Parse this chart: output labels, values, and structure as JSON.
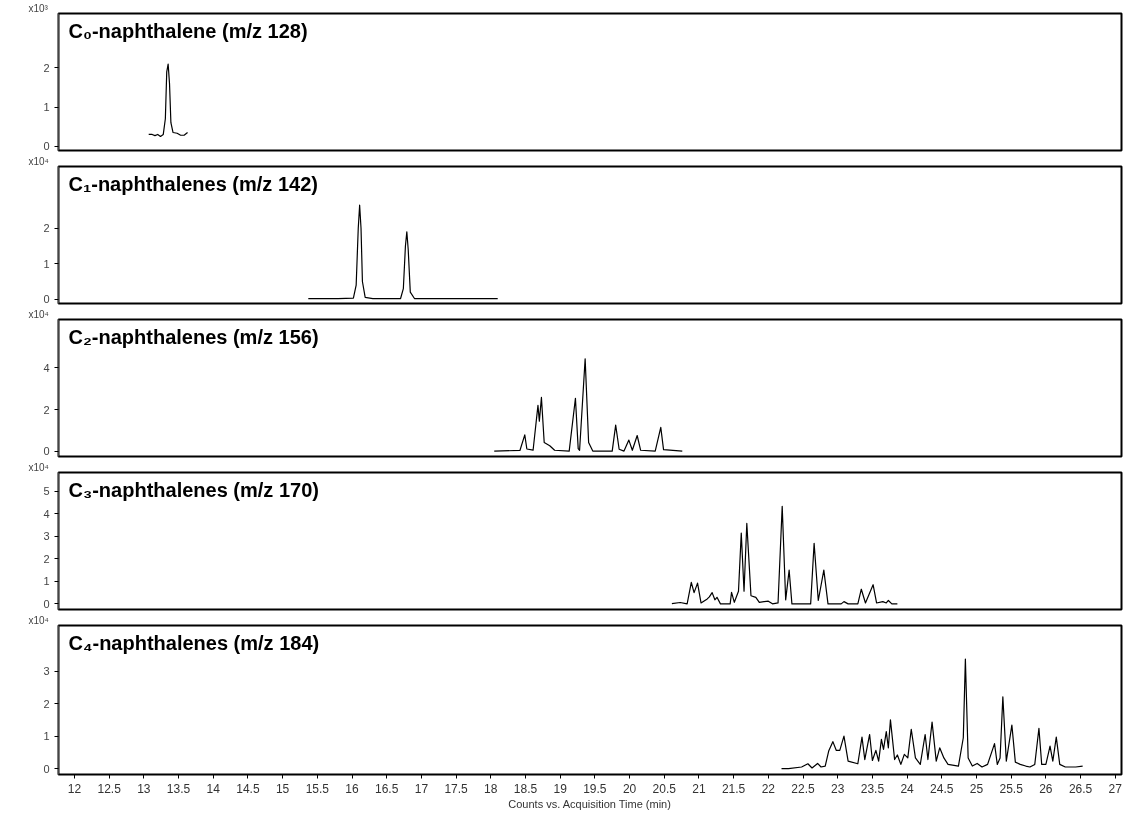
{
  "chart_data": [
    {
      "type": "line",
      "title": "C₀-naphthalene (m/z 128)",
      "ylabel": "x10³",
      "color": "#000000",
      "tick_labels": "y",
      "xlim": [
        11.77,
        27.09
      ],
      "ylim": [
        -0.11,
        3.39
      ],
      "yticks": [
        0,
        1,
        2
      ],
      "x": [
        13.07,
        13.12,
        13.16,
        13.2,
        13.24,
        13.28,
        13.31,
        13.33,
        13.35,
        13.37,
        13.39,
        13.42,
        13.48,
        13.53,
        13.58,
        13.63
      ],
      "values": [
        0.3,
        0.3,
        0.27,
        0.3,
        0.25,
        0.3,
        0.7,
        1.9,
        2.1,
        1.6,
        0.6,
        0.35,
        0.33,
        0.28,
        0.28,
        0.35
      ]
    },
    {
      "type": "line",
      "title": "C₁-naphthalenes (m/z 142)",
      "ylabel": "x10⁴",
      "color": "#000000",
      "tick_labels": "y",
      "xlim": [
        11.77,
        27.09
      ],
      "ylim": [
        -0.12,
        3.74
      ],
      "yticks": [
        0,
        1,
        2
      ],
      "x": [
        15.37,
        15.8,
        16.02,
        16.06,
        16.09,
        16.11,
        16.13,
        16.15,
        16.19,
        16.3,
        16.7,
        16.74,
        16.77,
        16.79,
        16.81,
        16.84,
        16.9,
        18.1
      ],
      "values": [
        0.02,
        0.02,
        0.03,
        0.4,
        2.0,
        2.65,
        2.0,
        0.5,
        0.05,
        0.02,
        0.02,
        0.3,
        1.5,
        1.9,
        1.4,
        0.2,
        0.02,
        0.02
      ]
    },
    {
      "type": "line",
      "title": "C₂-naphthalenes (m/z 156)",
      "ylabel": "x10⁴",
      "color": "#000000",
      "tick_labels": "y",
      "xlim": [
        11.77,
        27.09
      ],
      "ylim": [
        -0.26,
        6.33
      ],
      "yticks": [
        0,
        2,
        4
      ],
      "x": [
        18.05,
        18.42,
        18.49,
        18.52,
        18.61,
        18.68,
        18.7,
        18.73,
        18.77,
        18.85,
        18.92,
        19.13,
        19.22,
        19.26,
        19.28,
        19.36,
        19.41,
        19.47,
        19.75,
        19.8,
        19.85,
        19.92,
        19.99,
        20.04,
        20.11,
        20.16,
        20.37,
        20.45,
        20.49,
        20.76
      ],
      "values": [
        0,
        0.03,
        0.78,
        0.1,
        0.05,
        2.2,
        1.44,
        2.58,
        0.41,
        0.26,
        0.04,
        0,
        2.54,
        0.12,
        0.04,
        4.44,
        0.41,
        0,
        0,
        1.25,
        0.09,
        0,
        0.53,
        0.04,
        0.75,
        0.04,
        0,
        1.14,
        0.07,
        0
      ]
    },
    {
      "type": "line",
      "title": "C₃-naphthalenes (m/z 170)",
      "ylabel": "x10⁴",
      "color": "#000000",
      "tick_labels": "y",
      "xlim": [
        11.77,
        27.09
      ],
      "ylim": [
        -0.25,
        5.83
      ],
      "yticks": [
        0,
        1,
        2,
        3,
        4,
        5
      ],
      "x": [
        20.61,
        20.73,
        20.83,
        20.89,
        20.93,
        20.98,
        21.03,
        21.12,
        21.15,
        21.19,
        21.23,
        21.26,
        21.31,
        21.45,
        21.47,
        21.51,
        21.57,
        21.61,
        21.65,
        21.69,
        21.75,
        21.82,
        21.87,
        22.0,
        22.06,
        22.14,
        22.2,
        22.25,
        22.3,
        22.34,
        22.61,
        22.66,
        22.72,
        22.8,
        22.86,
        23.05,
        23.09,
        23.15,
        23.29,
        23.34,
        23.4,
        23.51,
        23.56,
        23.65,
        23.7,
        23.73,
        23.78,
        23.86
      ],
      "values": [
        0.01,
        0.06,
        0,
        0.95,
        0.5,
        0.92,
        0.04,
        0.22,
        0.31,
        0.5,
        0.18,
        0.29,
        0,
        0,
        0.51,
        0.07,
        0.56,
        3.14,
        0.56,
        3.57,
        0.36,
        0.29,
        0.07,
        0.12,
        0,
        0.04,
        4.33,
        0.18,
        1.5,
        0,
        0,
        2.69,
        0.15,
        1.5,
        0,
        0,
        0.1,
        0,
        0,
        0.65,
        0.04,
        0.85,
        0.04,
        0.1,
        0.04,
        0.15,
        0,
        0
      ]
    },
    {
      "type": "line",
      "title": "C₄-naphthalenes (m/z 184)",
      "ylabel": "x10⁴",
      "xlabel": "Counts vs. Acquisition Time (min)",
      "color": "#000000",
      "xlim": [
        11.77,
        27.09
      ],
      "ylim": [
        -0.18,
        4.4
      ],
      "yticks": [
        0,
        1,
        2,
        3
      ],
      "xticks": [
        12,
        12.5,
        13,
        13.5,
        14,
        14.5,
        15,
        15.5,
        16,
        16.5,
        17,
        17.5,
        18,
        18.5,
        19,
        19.5,
        20,
        20.5,
        21,
        21.5,
        22,
        22.5,
        23,
        23.5,
        24,
        24.5,
        25,
        25.5,
        26,
        26.5,
        27
      ],
      "x": [
        22.19,
        22.29,
        22.48,
        22.57,
        22.63,
        22.71,
        22.76,
        22.82,
        22.87,
        22.93,
        22.98,
        23.03,
        23.09,
        23.15,
        23.29,
        23.35,
        23.39,
        23.46,
        23.5,
        23.55,
        23.59,
        23.63,
        23.66,
        23.7,
        23.73,
        23.76,
        23.82,
        23.86,
        23.91,
        23.96,
        24.01,
        24.06,
        24.12,
        24.19,
        24.26,
        24.3,
        24.36,
        24.42,
        24.47,
        24.53,
        24.59,
        24.74,
        24.81,
        24.84,
        24.88,
        24.94,
        25.01,
        25.08,
        25.16,
        25.26,
        25.3,
        25.34,
        25.38,
        25.43,
        25.51,
        25.56,
        25.63,
        25.71,
        25.77,
        25.84,
        25.9,
        25.94,
        26.0,
        26.06,
        26.1,
        26.15,
        26.2,
        26.28,
        26.43,
        26.53
      ],
      "values": [
        0,
        0,
        0.05,
        0.15,
        0.02,
        0.16,
        0.05,
        0.08,
        0.54,
        0.83,
        0.56,
        0.56,
        1.0,
        0.23,
        0.15,
        0.97,
        0.28,
        1.05,
        0.25,
        0.56,
        0.23,
        0.9,
        0.59,
        1.14,
        0.64,
        1.5,
        0.28,
        0.42,
        0.13,
        0.44,
        0.33,
        1.21,
        0.33,
        0.13,
        1.05,
        0.28,
        1.43,
        0.23,
        0.64,
        0.33,
        0.13,
        0.08,
        0.95,
        3.37,
        0.33,
        0.08,
        0.16,
        0.05,
        0.13,
        0.77,
        0.13,
        0.33,
        2.21,
        0.23,
        1.34,
        0.2,
        0.13,
        0.08,
        0.05,
        0.13,
        1.24,
        0.13,
        0.13,
        0.69,
        0.23,
        0.97,
        0.13,
        0.05,
        0.05,
        0.08
      ]
    }
  ]
}
